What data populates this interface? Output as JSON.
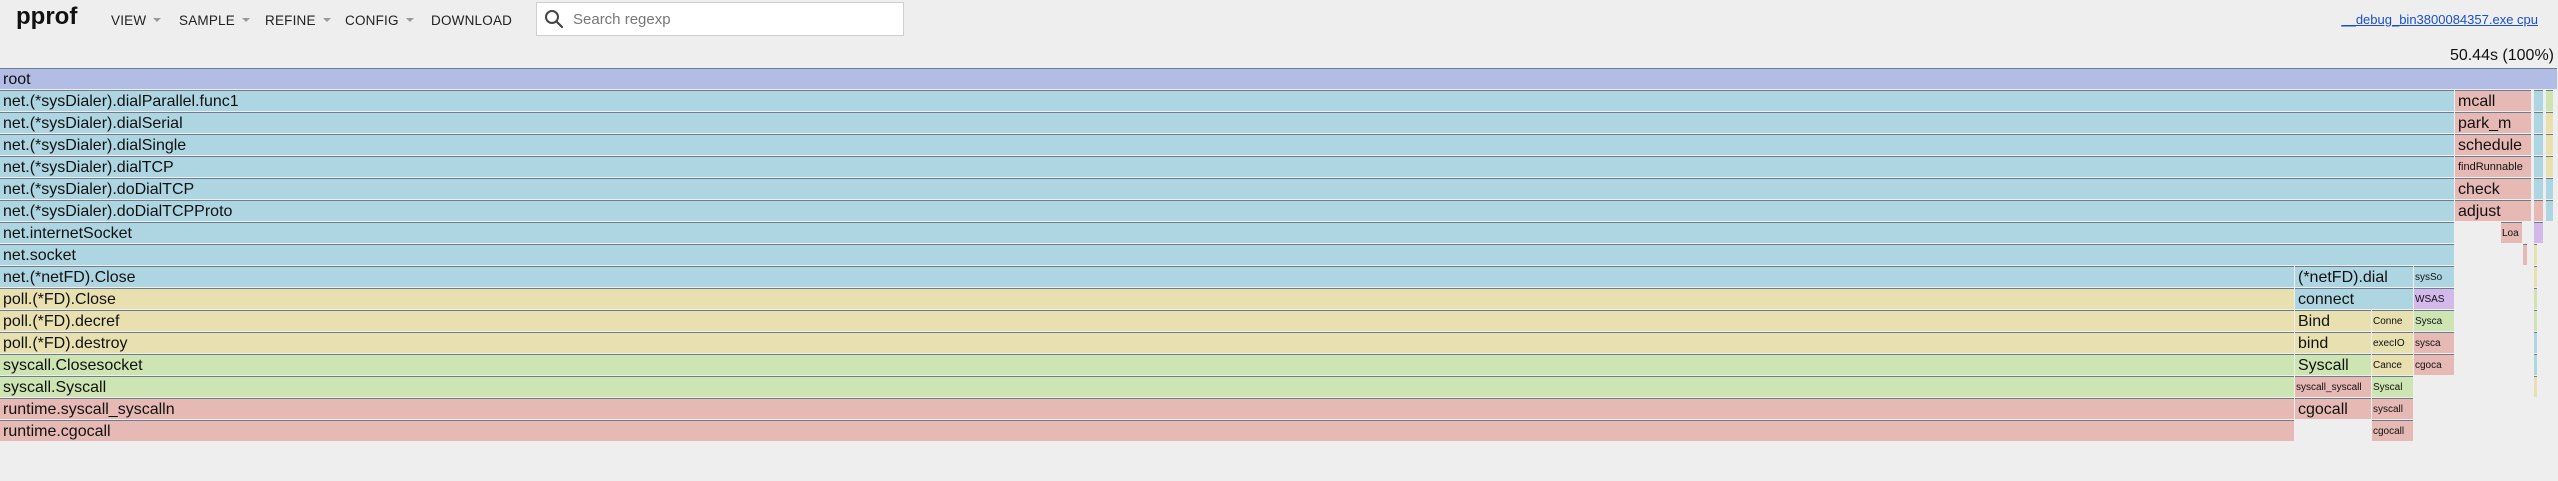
{
  "app": {
    "title": "pprof"
  },
  "menus": [
    {
      "label": "VIEW"
    },
    {
      "label": "SAMPLE"
    },
    {
      "label": "REFINE"
    },
    {
      "label": "CONFIG"
    },
    {
      "label": "DOWNLOAD"
    }
  ],
  "search": {
    "placeholder": "Search regexp",
    "value": ""
  },
  "file": {
    "link": "__debug_bin3800084357.exe cpu"
  },
  "total": "50.44s (100%)",
  "colors": {
    "purple": "#b1bde4",
    "blue": "#aed6e2",
    "yellow": "#e8e0ae",
    "green": "#cde5b2",
    "red": "#e7b9b5",
    "orange": "#ecc39e",
    "violet": "#d3b8ea"
  },
  "frames": [
    {
      "name": "root",
      "row": 0,
      "start": 0.0,
      "end": 1.0,
      "color": "purple"
    },
    {
      "name": "net.(*sysDialer).dialParallel.func1",
      "row": 1,
      "start": 0.0,
      "end": 0.9597,
      "color": "blue"
    },
    {
      "name": "net.(*sysDialer).dialSerial",
      "row": 2,
      "start": 0.0,
      "end": 0.9597,
      "color": "blue"
    },
    {
      "name": "net.(*sysDialer).dialSingle",
      "row": 3,
      "start": 0.0,
      "end": 0.9597,
      "color": "blue"
    },
    {
      "name": "net.(*sysDialer).dialTCP",
      "row": 4,
      "start": 0.0,
      "end": 0.9597,
      "color": "blue"
    },
    {
      "name": "net.(*sysDialer).doDialTCP",
      "row": 5,
      "start": 0.0,
      "end": 0.9597,
      "color": "blue"
    },
    {
      "name": "net.(*sysDialer).doDialTCPProto",
      "row": 6,
      "start": 0.0,
      "end": 0.9597,
      "color": "blue"
    },
    {
      "name": "net.internetSocket",
      "row": 7,
      "start": 0.0,
      "end": 0.9597,
      "color": "blue"
    },
    {
      "name": "net.socket",
      "row": 8,
      "start": 0.0,
      "end": 0.9597,
      "color": "blue"
    },
    {
      "name": "net.(*netFD).Close",
      "row": 9,
      "start": 0.0,
      "end": 0.8972,
      "color": "blue"
    },
    {
      "name": "(*netFD).dial",
      "row": 9,
      "start": 0.8972,
      "end": 0.9437,
      "color": "blue"
    },
    {
      "name": "sysSo",
      "row": 9,
      "start": 0.9437,
      "end": 0.9597,
      "color": "blue",
      "size": "tiny"
    },
    {
      "name": "poll.(*FD).Close",
      "row": 10,
      "start": 0.0,
      "end": 0.8972,
      "color": "yellow"
    },
    {
      "name": "connect",
      "row": 10,
      "start": 0.8972,
      "end": 0.9437,
      "color": "blue"
    },
    {
      "name": "WSAS",
      "row": 10,
      "start": 0.9437,
      "end": 0.9597,
      "color": "violet",
      "size": "tiny"
    },
    {
      "name": "poll.(*FD).decref",
      "row": 11,
      "start": 0.0,
      "end": 0.8972,
      "color": "yellow"
    },
    {
      "name": "Bind",
      "row": 11,
      "start": 0.8972,
      "end": 0.9273,
      "color": "yellow"
    },
    {
      "name": "Conne",
      "row": 11,
      "start": 0.9273,
      "end": 0.9437,
      "color": "yellow",
      "size": "tiny"
    },
    {
      "name": "Sysca",
      "row": 11,
      "start": 0.9437,
      "end": 0.9597,
      "color": "green",
      "size": "tiny"
    },
    {
      "name": "poll.(*FD).destroy",
      "row": 12,
      "start": 0.0,
      "end": 0.8972,
      "color": "yellow"
    },
    {
      "name": "bind",
      "row": 12,
      "start": 0.8972,
      "end": 0.9273,
      "color": "yellow"
    },
    {
      "name": "execIO",
      "row": 12,
      "start": 0.9273,
      "end": 0.9437,
      "color": "yellow",
      "size": "tiny"
    },
    {
      "name": "sysca",
      "row": 12,
      "start": 0.9437,
      "end": 0.9597,
      "color": "red",
      "size": "tiny"
    },
    {
      "name": "syscall.Closesocket",
      "row": 13,
      "start": 0.0,
      "end": 0.8972,
      "color": "green"
    },
    {
      "name": "Syscall",
      "row": 13,
      "start": 0.8972,
      "end": 0.9273,
      "color": "green"
    },
    {
      "name": "Cance",
      "row": 13,
      "start": 0.9273,
      "end": 0.9437,
      "color": "yellow",
      "size": "tiny"
    },
    {
      "name": "cgoca",
      "row": 13,
      "start": 0.9437,
      "end": 0.9597,
      "color": "red",
      "size": "tiny"
    },
    {
      "name": "syscall.Syscall",
      "row": 14,
      "start": 0.0,
      "end": 0.8972,
      "color": "green"
    },
    {
      "name": "syscall_syscall",
      "row": 14,
      "start": 0.8972,
      "end": 0.9273,
      "color": "red",
      "size": "tiny"
    },
    {
      "name": "Syscal",
      "row": 14,
      "start": 0.9273,
      "end": 0.9437,
      "color": "green",
      "size": "tiny"
    },
    {
      "name": "runtime.syscall_syscalln",
      "row": 15,
      "start": 0.0,
      "end": 0.8972,
      "color": "red"
    },
    {
      "name": "cgocall",
      "row": 15,
      "start": 0.8972,
      "end": 0.9273,
      "color": "red"
    },
    {
      "name": "syscall",
      "row": 15,
      "start": 0.9273,
      "end": 0.9437,
      "color": "red",
      "size": "tiny"
    },
    {
      "name": "runtime.cgocall",
      "row": 16,
      "start": 0.0,
      "end": 0.8972,
      "color": "red"
    },
    {
      "name": "cgocall",
      "row": 16,
      "start": 0.9273,
      "end": 0.9437,
      "color": "red",
      "size": "tiny"
    },
    {
      "name": "mcall",
      "row": 1,
      "start": 0.9597,
      "end": 0.9898,
      "color": "red"
    },
    {
      "name": "park_m",
      "row": 2,
      "start": 0.9597,
      "end": 0.9898,
      "color": "red"
    },
    {
      "name": "schedule",
      "row": 3,
      "start": 0.9597,
      "end": 0.9898,
      "color": "red"
    },
    {
      "name": "findRunnable",
      "row": 4,
      "start": 0.9597,
      "end": 0.9898,
      "color": "red",
      "size": "small"
    },
    {
      "name": "check",
      "row": 5,
      "start": 0.9597,
      "end": 0.9898,
      "color": "red"
    },
    {
      "name": "adjust",
      "row": 6,
      "start": 0.9597,
      "end": 0.9898,
      "color": "red"
    },
    {
      "name": "Loa",
      "row": 7,
      "start": 0.9777,
      "end": 0.9863,
      "color": "red",
      "size": "tiny"
    },
    {
      "name": "",
      "row": 7,
      "start": 0.9906,
      "end": 0.9945,
      "color": "violet"
    },
    {
      "name": "",
      "row": 8,
      "start": 0.9863,
      "end": 0.9882,
      "color": "red"
    },
    {
      "name": "",
      "row": 1,
      "start": 0.9906,
      "end": 0.9945,
      "color": "blue"
    },
    {
      "name": "",
      "row": 2,
      "start": 0.9906,
      "end": 0.9945,
      "color": "blue"
    },
    {
      "name": "",
      "row": 3,
      "start": 0.9906,
      "end": 0.9945,
      "color": "blue"
    },
    {
      "name": "",
      "row": 4,
      "start": 0.9906,
      "end": 0.9945,
      "color": "blue"
    },
    {
      "name": "",
      "row": 5,
      "start": 0.9906,
      "end": 0.9945,
      "color": "blue"
    },
    {
      "name": "",
      "row": 6,
      "start": 0.9906,
      "end": 0.9945,
      "color": "red"
    },
    {
      "name": "",
      "row": 8,
      "start": 0.9906,
      "end": 0.9922,
      "color": "yellow"
    },
    {
      "name": "",
      "row": 9,
      "start": 0.9906,
      "end": 0.9922,
      "color": "yellow"
    },
    {
      "name": "",
      "row": 10,
      "start": 0.9906,
      "end": 0.9922,
      "color": "green"
    },
    {
      "name": "",
      "row": 11,
      "start": 0.9906,
      "end": 0.9922,
      "color": "green"
    },
    {
      "name": "",
      "row": 12,
      "start": 0.9906,
      "end": 0.9922,
      "color": "blue"
    },
    {
      "name": "",
      "row": 13,
      "start": 0.9906,
      "end": 0.9922,
      "color": "blue"
    },
    {
      "name": "",
      "row": 14,
      "start": 0.9906,
      "end": 0.9922,
      "color": "yellow"
    },
    {
      "name": "",
      "row": 1,
      "start": 0.9953,
      "end": 0.9984,
      "color": "green"
    },
    {
      "name": "",
      "row": 2,
      "start": 0.9953,
      "end": 0.9984,
      "color": "yellow"
    },
    {
      "name": "",
      "row": 3,
      "start": 0.9953,
      "end": 0.9984,
      "color": "yellow"
    },
    {
      "name": "",
      "row": 4,
      "start": 0.9953,
      "end": 0.9984,
      "color": "yellow"
    },
    {
      "name": "",
      "row": 5,
      "start": 0.9953,
      "end": 0.9984,
      "color": "blue"
    },
    {
      "name": "",
      "row": 6,
      "start": 0.9953,
      "end": 0.9984,
      "color": "blue"
    }
  ]
}
